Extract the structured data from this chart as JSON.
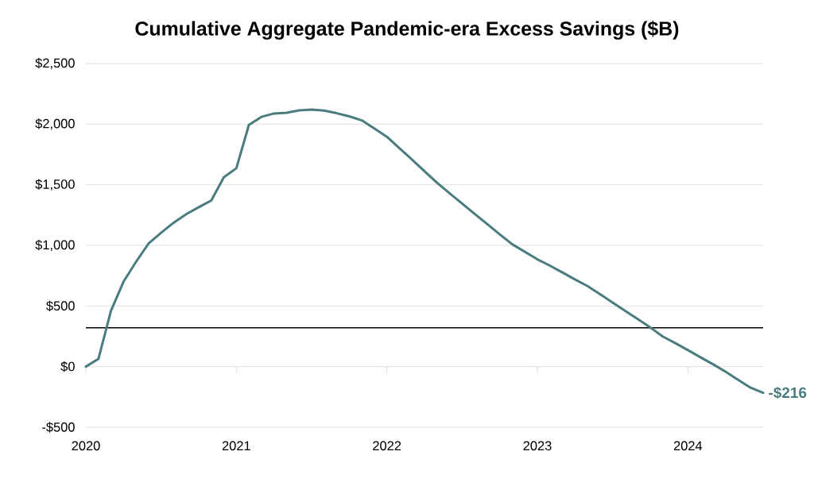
{
  "chart_data": {
    "type": "line",
    "title": "Cumulative Aggregate Pandemic-era Excess Savings ($B)",
    "x": [
      "2020-01",
      "2020-02",
      "2020-03",
      "2020-04",
      "2020-05",
      "2020-06",
      "2020-07",
      "2020-08",
      "2020-09",
      "2020-10",
      "2020-11",
      "2020-12",
      "2021-01",
      "2021-02",
      "2021-03",
      "2021-04",
      "2021-05",
      "2021-06",
      "2021-07",
      "2021-08",
      "2021-09",
      "2021-10",
      "2021-11",
      "2021-12",
      "2022-01",
      "2022-02",
      "2022-03",
      "2022-04",
      "2022-05",
      "2022-06",
      "2022-07",
      "2022-08",
      "2022-09",
      "2022-10",
      "2022-11",
      "2022-12",
      "2023-01",
      "2023-02",
      "2023-03",
      "2023-04",
      "2023-05",
      "2023-06",
      "2023-07",
      "2023-08",
      "2023-09",
      "2023-10",
      "2023-11",
      "2023-12",
      "2024-01",
      "2024-02",
      "2024-03",
      "2024-04",
      "2024-05",
      "2024-06",
      "2024-07"
    ],
    "series": [
      {
        "color": "#4a7c7e",
        "values": [
          0,
          63,
          460,
          700,
          864,
          1016,
          1104,
          1187,
          1257,
          1315,
          1370,
          1562,
          1636,
          1994,
          2060,
          2088,
          2094,
          2114,
          2120,
          2112,
          2090,
          2064,
          2031,
          1965,
          1896,
          1802,
          1708,
          1612,
          1516,
          1430,
          1345,
          1260,
          1176,
          1091,
          1009,
          947,
          885,
          833,
          776,
          719,
          664,
          597,
          529,
          460,
          392,
          323,
          248,
          193,
          136,
          77,
          20,
          -42,
          -108,
          -174,
          -216
        ]
      }
    ],
    "xlim": [
      "2020",
      "2024-07"
    ],
    "xticks": [
      {
        "value": "2020",
        "label": "2020"
      },
      {
        "value": "2021",
        "label": "2021"
      },
      {
        "value": "2022",
        "label": "2022"
      },
      {
        "value": "2023",
        "label": "2023"
      },
      {
        "value": "2024",
        "label": "2024"
      }
    ],
    "ylim": [
      -500,
      2500
    ],
    "yticks": [
      {
        "value": -500,
        "label": "-$500"
      },
      {
        "value": 0,
        "label": "$0"
      },
      {
        "value": 500,
        "label": "$500"
      },
      {
        "value": 1000,
        "label": "$1,000"
      },
      {
        "value": 1500,
        "label": "$1,500"
      },
      {
        "value": 2000,
        "label": "$2,000"
      },
      {
        "value": 2500,
        "label": "$2,500"
      }
    ],
    "grid": "y",
    "legend": false,
    "line_style": "solid",
    "ref_lines": [
      {
        "axis": "y",
        "value": 320,
        "color": "#000000",
        "line_style": "solid"
      }
    ],
    "annotations": [
      {
        "text": "-$216",
        "x": "2024-07",
        "y": -216
      }
    ]
  }
}
